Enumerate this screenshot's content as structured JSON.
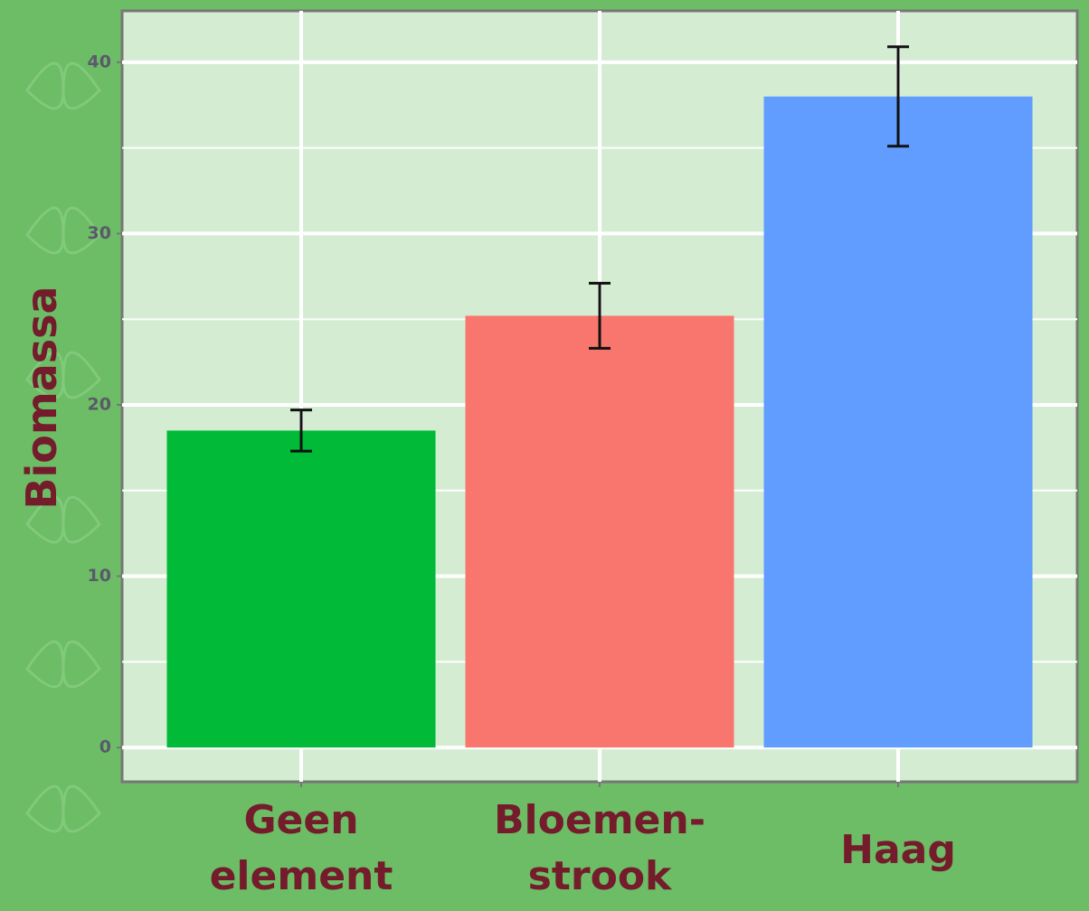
{
  "chart_data": {
    "type": "bar",
    "y_label": "Biomassa",
    "categories": [
      "Geen element",
      "Bloemen-strook",
      "Haag"
    ],
    "values": [
      18.5,
      25.2,
      38.0
    ],
    "errors": [
      1.2,
      1.9,
      2.9
    ],
    "colors": [
      "#00ba38",
      "#f8766d",
      "#619cff"
    ],
    "ylim": [
      -2,
      43
    ],
    "yticks": [
      0,
      10,
      20,
      30,
      40
    ],
    "grid": true
  }
}
